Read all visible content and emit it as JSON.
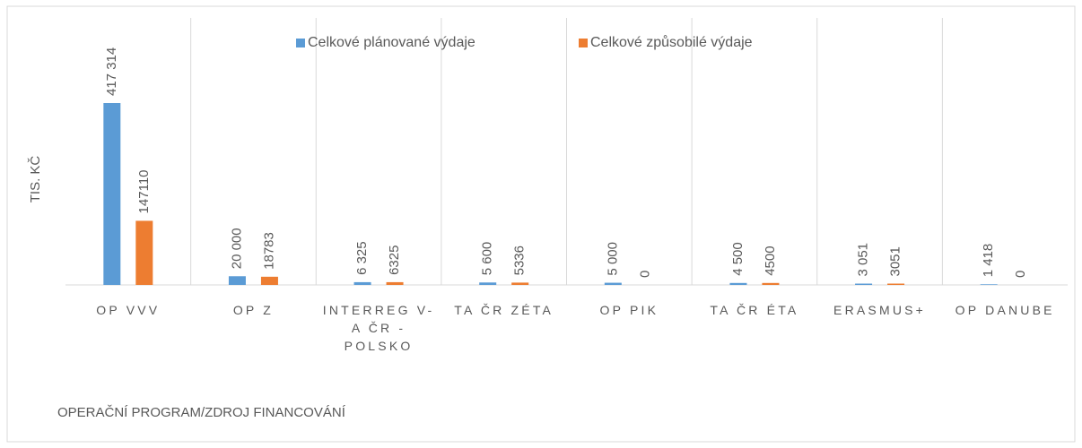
{
  "chart_data": {
    "type": "bar",
    "x_label": "OPERAČNÍ PROGRAM/ZDROJ FINANCOVÁNÍ",
    "y_label": "TIS. KČ",
    "categories": [
      "OP VVV",
      "OP Z",
      "INTERREG V-A ČR - POLSKO",
      "TA ČR ZÉTA",
      "OP PIK",
      "TA ČR ÉTA",
      "ERASMUS+",
      "OP DANUBE"
    ],
    "series": [
      {
        "name": "Celkové plánované výdaje",
        "color": "#5b9bd5",
        "values": [
          417314,
          20000,
          6325,
          5600,
          5000,
          4500,
          3051,
          1418
        ],
        "value_labels": [
          "417 314",
          "20 000",
          "6 325",
          "5 600",
          "5 000",
          "4 500",
          "3 051",
          "1 418"
        ]
      },
      {
        "name": "Celkové způsobilé výdaje",
        "color": "#ed7d31",
        "values": [
          147110,
          18783,
          6325,
          5336,
          0,
          4500,
          3051,
          0
        ]
      }
    ],
    "ylim": [
      0,
      450000
    ],
    "legend": "top"
  }
}
